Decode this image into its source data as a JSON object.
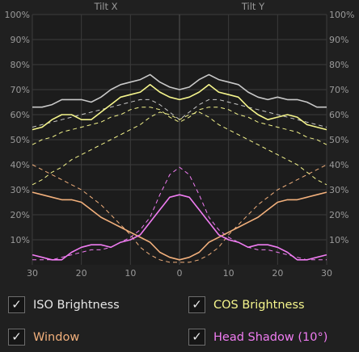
{
  "chart_data": {
    "type": "line",
    "header_labels": [
      "Tilt X",
      "Tilt Y"
    ],
    "y_ticks": [
      "10%",
      "20%",
      "30%",
      "40%",
      "50%",
      "60%",
      "70%",
      "80%",
      "90%",
      "100%"
    ],
    "x_ticks": [
      "30",
      "20",
      "10",
      "0",
      "10",
      "20",
      "30"
    ],
    "x": [
      -30,
      -28,
      -26,
      -24,
      -22,
      -20,
      -18,
      -16,
      -14,
      -12,
      -10,
      -8,
      -6,
      -4,
      -2,
      0,
      2,
      4,
      6,
      8,
      10,
      12,
      14,
      16,
      18,
      20,
      22,
      24,
      26,
      28,
      30
    ],
    "xlim": [
      -30,
      30
    ],
    "ylim": [
      0,
      100
    ],
    "grid": true,
    "series": [
      {
        "name": "ISO Brightness",
        "color": "#c9c9c9",
        "style": "solid",
        "values": [
          63,
          63,
          64,
          66,
          66,
          66,
          65,
          67,
          70,
          72,
          73,
          74,
          76,
          73,
          71,
          70,
          71,
          74,
          76,
          74,
          73,
          72,
          69,
          67,
          66,
          67,
          66,
          66,
          65,
          63,
          63
        ]
      },
      {
        "color": "#c9c9c9",
        "style": "dashed",
        "values": [
          55,
          56,
          57,
          58,
          59,
          60,
          61,
          62,
          63,
          64,
          65,
          66,
          66,
          64,
          61,
          58,
          61,
          64,
          66,
          66,
          65,
          64,
          63,
          62,
          61,
          60,
          59,
          58,
          57,
          56,
          55
        ]
      },
      {
        "name": "COS Brightness",
        "color": "#f5f58c",
        "style": "solid",
        "values": [
          54,
          55,
          58,
          60,
          60,
          58,
          58,
          61,
          64,
          67,
          68,
          69,
          72,
          69,
          67,
          66,
          67,
          69,
          72,
          69,
          68,
          67,
          63,
          60,
          58,
          59,
          60,
          59,
          56,
          55,
          54
        ]
      },
      {
        "color": "#f5f58c",
        "style": "dashed",
        "values": [
          48,
          50,
          51,
          53,
          54,
          55,
          56,
          57,
          59,
          60,
          62,
          63,
          63,
          62,
          59,
          57,
          59,
          62,
          63,
          63,
          62,
          60,
          59,
          57,
          56,
          55,
          54,
          53,
          51,
          50,
          48
        ]
      },
      {
        "color": "#f5f58c",
        "style": "dashed",
        "values": [
          32,
          34,
          37,
          39,
          42,
          44,
          46,
          48,
          50,
          52,
          54,
          56,
          59,
          61,
          60,
          58,
          60,
          61,
          59,
          56,
          54,
          52,
          50,
          48,
          46,
          44,
          42,
          40,
          37,
          34,
          32
        ]
      },
      {
        "name": "Window",
        "color": "#f2b07c",
        "style": "solid",
        "values": [
          29,
          28,
          27,
          26,
          26,
          25,
          22,
          19,
          17,
          15,
          13,
          11,
          9,
          5,
          3,
          2,
          3,
          5,
          9,
          11,
          13,
          15,
          17,
          19,
          22,
          25,
          26,
          26,
          27,
          28,
          29
        ]
      },
      {
        "color": "#f2b07c",
        "style": "dashed",
        "values": [
          40,
          38,
          36,
          34,
          32,
          30,
          27,
          24,
          20,
          16,
          12,
          7,
          4,
          2,
          1,
          1,
          1,
          2,
          4,
          7,
          12,
          16,
          20,
          24,
          27,
          30,
          32,
          34,
          36,
          38,
          40
        ]
      },
      {
        "name": "Head Shadow (10°)",
        "color": "#f07cf2",
        "style": "solid",
        "values": [
          4,
          3,
          2,
          2,
          5,
          7,
          8,
          8,
          7,
          9,
          10,
          12,
          17,
          22,
          27,
          28,
          27,
          22,
          17,
          12,
          10,
          9,
          7,
          8,
          8,
          7,
          5,
          2,
          2,
          3,
          4
        ]
      },
      {
        "color": "#f07cf2",
        "style": "dashed",
        "values": [
          2,
          2,
          2,
          3,
          4,
          5,
          6,
          6,
          7,
          9,
          11,
          14,
          19,
          28,
          36,
          39,
          36,
          28,
          19,
          14,
          11,
          9,
          7,
          6,
          6,
          5,
          4,
          3,
          2,
          2,
          2
        ]
      }
    ]
  },
  "legend": {
    "items": [
      {
        "label": "ISO Brightness",
        "check": "✓",
        "color": "#e6e6e6"
      },
      {
        "label": "COS Brightness",
        "check": "✓",
        "color": "#f5f58c"
      },
      {
        "label": "Window",
        "check": "✓",
        "color": "#f2b07c"
      },
      {
        "label": "Head Shadow (10°)",
        "check": "✓",
        "color": "#f07cf2"
      }
    ]
  }
}
